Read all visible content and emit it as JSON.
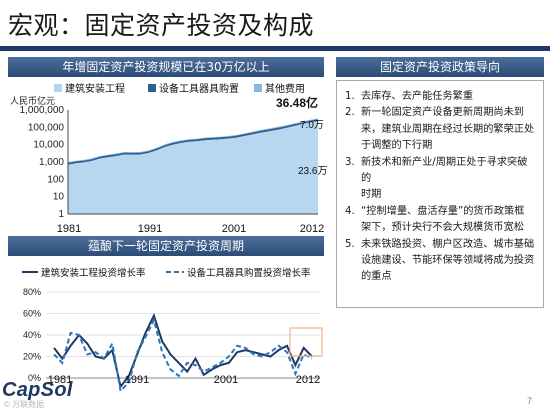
{
  "slide": {
    "title": "宏观：固定资产投资及构成",
    "logo": "CapSol",
    "watermark": "© 万联数据",
    "page_number": "7"
  },
  "top_chart": {
    "banner": "年增固定资产投资规模已在30万亿以上",
    "callout": "36.48亿",
    "annotations": [
      "7.0万",
      "23.6万"
    ],
    "colors": {
      "construction": "#b7d7f1",
      "equipment": "#2e5f92",
      "other": "#8db4e2"
    }
  },
  "policy": {
    "banner": "固定资产投资政策导向",
    "items": [
      {
        "num": "1.",
        "lines": [
          "去库存、去产能任务繁重"
        ]
      },
      {
        "num": "2.",
        "lines": [
          "新一轮固定资产设备更新周期尚未到",
          "来，建筑业周期在经过长期的繁荣正处",
          "于调整的下行期"
        ]
      },
      {
        "num": "3.",
        "lines": [
          "新技术和新产业/周期正处于寻求突破的",
          "时期"
        ]
      },
      {
        "num": "4.",
        "lines": [
          "“控制增量、盘活存量”的货币政策框",
          "架下，预计央行不会大规模货币宽松"
        ]
      },
      {
        "num": "5.",
        "lines": [
          "未来铁路投资、棚户区改造、城市基础",
          "设施建设、节能环保等领域将成为投资",
          "的重点"
        ]
      }
    ]
  },
  "bottom_chart": {
    "banner": "蕴酿下一轮固定资产投资周期",
    "colors": {
      "construction": "#1f3864",
      "equipment": "#2e75b6",
      "highlight_box": "#f4b183"
    }
  },
  "chart_data": [
    {
      "type": "area",
      "ylabel": "人民币亿元",
      "y_scale": "log",
      "ylim": [
        1,
        1000000
      ],
      "y_ticks": [
        "1",
        "10",
        "100",
        "1,000",
        "10,000",
        "100,000",
        "1,000,000"
      ],
      "x_ticks": [
        "1981",
        "1991",
        "2001",
        "2012"
      ],
      "legend_position": "top",
      "x": [
        1981,
        1982,
        1983,
        1984,
        1985,
        1986,
        1987,
        1988,
        1989,
        1990,
        1991,
        1992,
        1993,
        1994,
        1995,
        1996,
        1997,
        1998,
        1999,
        2000,
        2001,
        2002,
        2003,
        2004,
        2005,
        2006,
        2007,
        2008,
        2009,
        2010,
        2011,
        2012
      ],
      "series": [
        {
          "name": "建筑安装工程",
          "values": [
            700,
            850,
            950,
            1150,
            1600,
            1900,
            2200,
            2700,
            2600,
            2700,
            3300,
            4700,
            7300,
            10000,
            12500,
            14600,
            15700,
            18200,
            19200,
            20600,
            22600,
            26000,
            32000,
            40000,
            50000,
            60000,
            73000,
            90000,
            118000,
            150000,
            190000,
            230000
          ]
        },
        {
          "name": "设备工具器具购置",
          "values": [
            200,
            230,
            260,
            320,
            450,
            540,
            620,
            760,
            740,
            760,
            920,
            1300,
            2000,
            2900,
            3600,
            4200,
            4500,
            5300,
            5600,
            6000,
            6600,
            7600,
            9600,
            12000,
            15000,
            18000,
            22000,
            26000,
            33000,
            40000,
            52000,
            65000
          ]
        },
        {
          "name": "其他费用",
          "values": [
            100,
            110,
            130,
            160,
            210,
            250,
            300,
            360,
            350,
            360,
            430,
            600,
            1000,
            1300,
            1600,
            1900,
            2000,
            2400,
            2500,
            2700,
            3000,
            3500,
            4500,
            5600,
            7000,
            8600,
            10500,
            13000,
            16000,
            20000,
            25000,
            30000
          ]
        }
      ]
    },
    {
      "type": "line",
      "ylim": [
        0,
        80
      ],
      "y_ticks": [
        "0%",
        "20%",
        "40%",
        "60%",
        "80%"
      ],
      "x_ticks": [
        "1981",
        "1991",
        "2001",
        "2012"
      ],
      "legend_position": "top",
      "x": [
        1981,
        1982,
        1983,
        1984,
        1985,
        1986,
        1987,
        1988,
        1989,
        1990,
        1991,
        1992,
        1993,
        1994,
        1995,
        1996,
        1997,
        1998,
        1999,
        2000,
        2001,
        2002,
        2003,
        2004,
        2005,
        2006,
        2007,
        2008,
        2009,
        2010,
        2011,
        2012
      ],
      "series": [
        {
          "name": "建筑安装工程投资增长率",
          "values": [
            28,
            18,
            30,
            40,
            32,
            20,
            18,
            26,
            -8,
            2,
            22,
            42,
            58,
            34,
            22,
            14,
            6,
            18,
            3,
            8,
            12,
            14,
            24,
            26,
            24,
            22,
            20,
            26,
            30,
            12,
            28,
            20
          ]
        },
        {
          "name": "设备工具器具购置投资增长率",
          "values": [
            22,
            14,
            42,
            40,
            22,
            24,
            18,
            32,
            -12,
            -4,
            24,
            38,
            54,
            24,
            8,
            2,
            14,
            12,
            6,
            10,
            14,
            20,
            30,
            28,
            22,
            20,
            24,
            30,
            24,
            4,
            22,
            18
          ]
        }
      ]
    }
  ]
}
